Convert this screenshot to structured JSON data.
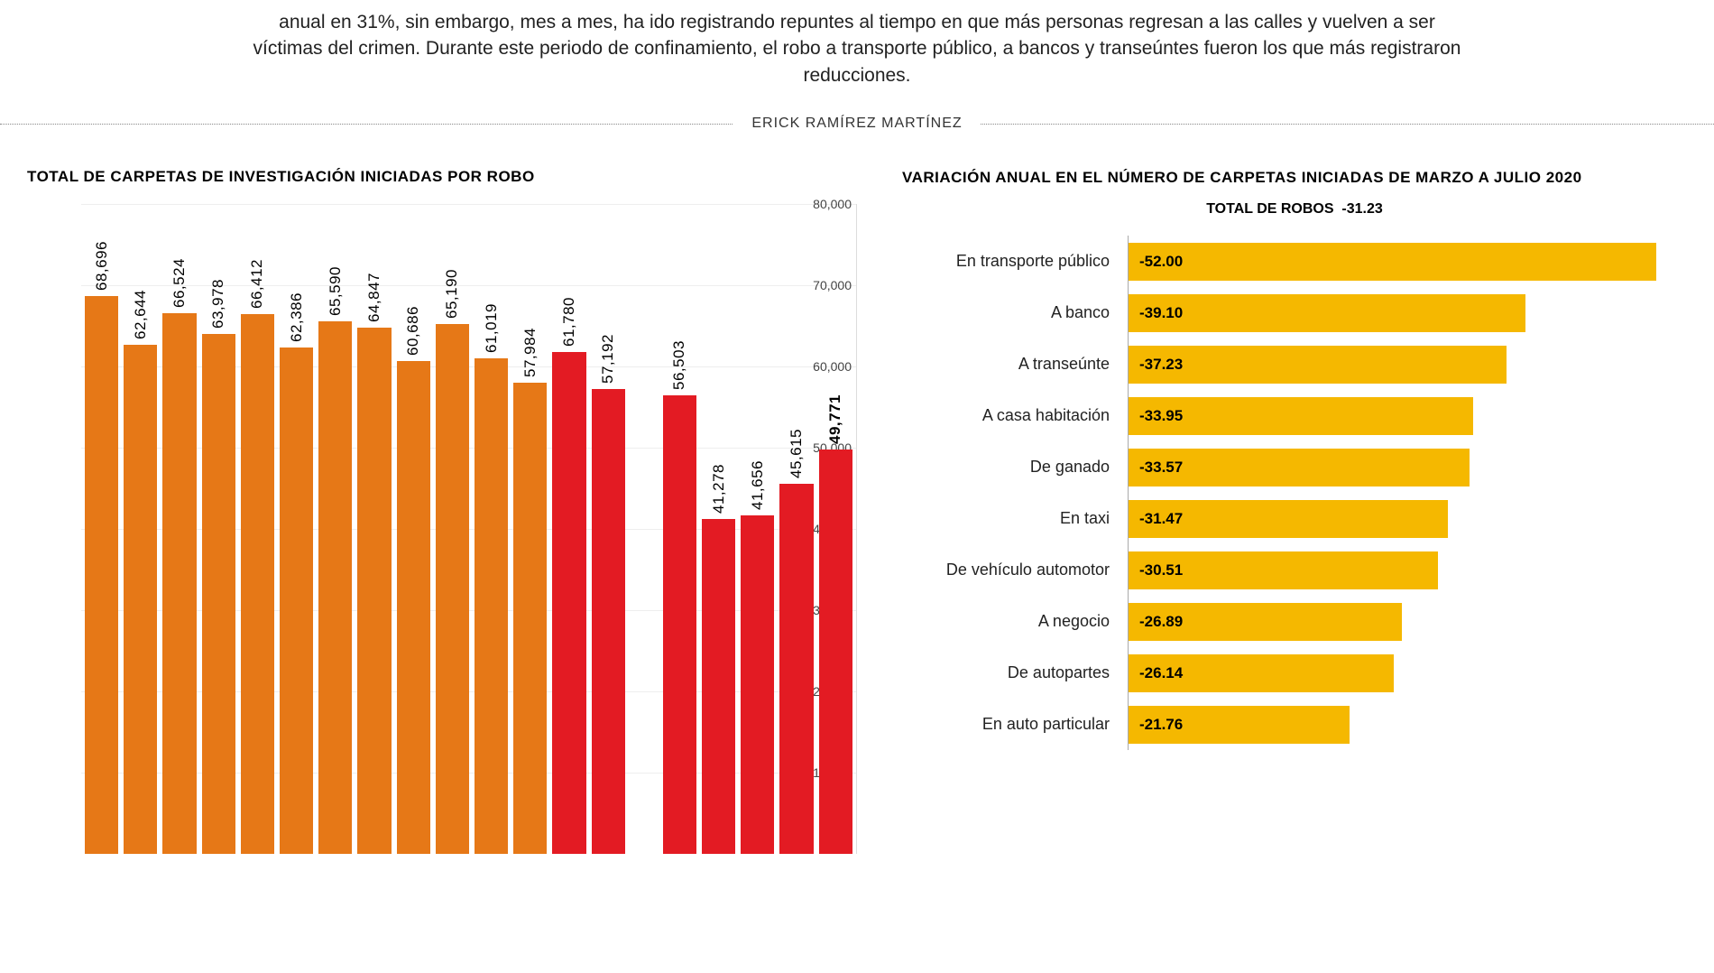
{
  "intro": {
    "text": "anual en 31%, sin embargo, mes a mes, ha ido registrando repuntes al tiempo en que más personas regresan a las calles y vuelven a ser víctimas del crimen. Durante este periodo de confinamiento, el robo a transporte público, a bancos y transeúntes fueron los que más registraron reducciones."
  },
  "author": "ERICK RAMÍREZ MARTÍNEZ",
  "bar_chart": {
    "title": "TOTAL DE CARPETAS DE INVESTIGACIÓN INICIADAS POR ROBO",
    "type": "bar",
    "ylim": [
      0,
      80000
    ],
    "ytick_step": 10000,
    "background_color": "#ffffff",
    "grid_color": "#eeeeee",
    "label_fontsize": 17,
    "bars": [
      {
        "value": 68696,
        "label": "68,696",
        "color": "#e67817",
        "bold": false
      },
      {
        "value": 62644,
        "label": "62,644",
        "color": "#e67817",
        "bold": false
      },
      {
        "value": 66524,
        "label": "66,524",
        "color": "#e67817",
        "bold": false
      },
      {
        "value": 63978,
        "label": "63,978",
        "color": "#e67817",
        "bold": false
      },
      {
        "value": 66412,
        "label": "66,412",
        "color": "#e67817",
        "bold": false
      },
      {
        "value": 62386,
        "label": "62,386",
        "color": "#e67817",
        "bold": false
      },
      {
        "value": 65590,
        "label": "65,590",
        "color": "#e67817",
        "bold": false
      },
      {
        "value": 64847,
        "label": "64,847",
        "color": "#e67817",
        "bold": false
      },
      {
        "value": 60686,
        "label": "60,686",
        "color": "#e67817",
        "bold": false
      },
      {
        "value": 65190,
        "label": "65,190",
        "color": "#e67817",
        "bold": false
      },
      {
        "value": 61019,
        "label": "61,019",
        "color": "#e67817",
        "bold": false
      },
      {
        "value": 57984,
        "label": "57,984",
        "color": "#e67817",
        "bold": false
      },
      {
        "value": 61780,
        "label": "61,780",
        "color": "#e31b23",
        "bold": false
      },
      {
        "value": 57192,
        "label": "57,192",
        "color": "#e31b23",
        "bold": false
      },
      {
        "value": 56503,
        "label": "56,503",
        "color": "#e31b23",
        "bold": false
      },
      {
        "value": 41278,
        "label": "41,278",
        "color": "#e31b23",
        "bold": false
      },
      {
        "value": 41656,
        "label": "41,656",
        "color": "#e31b23",
        "bold": false
      },
      {
        "value": 45615,
        "label": "45,615",
        "color": "#e31b23",
        "bold": false
      },
      {
        "value": 49771,
        "label": "49,771",
        "color": "#e31b23",
        "bold": true
      }
    ],
    "yticks": [
      {
        "v": 10000,
        "l": "10,000"
      },
      {
        "v": 20000,
        "l": "20,000"
      },
      {
        "v": 30000,
        "l": "30,000"
      },
      {
        "v": 40000,
        "l": "40,000"
      },
      {
        "v": 50000,
        "l": "50,000"
      },
      {
        "v": 60000,
        "l": "60,000"
      },
      {
        "v": 70000,
        "l": "70,000"
      },
      {
        "v": 80000,
        "l": "80,000"
      }
    ]
  },
  "hbar_chart": {
    "title": "VARIACIÓN ANUAL EN EL NÚMERO DE CARPETAS INICIADAS DE MARZO A JULIO 2020",
    "subtitle_prefix": "TOTAL DE ROBOS",
    "subtitle_value": "-31.23",
    "type": "bar",
    "bar_color": "#f5b800",
    "max_abs": 55,
    "label_fontsize": 18,
    "value_fontsize": 17,
    "rows": [
      {
        "cat": "En transporte público",
        "val": -52.0,
        "label": "-52.00"
      },
      {
        "cat": "A banco",
        "val": -39.1,
        "label": "-39.10"
      },
      {
        "cat": "A transeúnte",
        "val": -37.23,
        "label": "-37.23"
      },
      {
        "cat": "A casa habitación",
        "val": -33.95,
        "label": "-33.95"
      },
      {
        "cat": "De ganado",
        "val": -33.57,
        "label": "-33.57"
      },
      {
        "cat": "En taxi",
        "val": -31.47,
        "label": "-31.47"
      },
      {
        "cat": "De vehículo automotor",
        "val": -30.51,
        "label": "-30.51"
      },
      {
        "cat": "A negocio",
        "val": -26.89,
        "label": "-26.89"
      },
      {
        "cat": "De autopartes",
        "val": -26.14,
        "label": "-26.14"
      },
      {
        "cat": "En auto particular",
        "val": -21.76,
        "label": "-21.76"
      }
    ]
  }
}
